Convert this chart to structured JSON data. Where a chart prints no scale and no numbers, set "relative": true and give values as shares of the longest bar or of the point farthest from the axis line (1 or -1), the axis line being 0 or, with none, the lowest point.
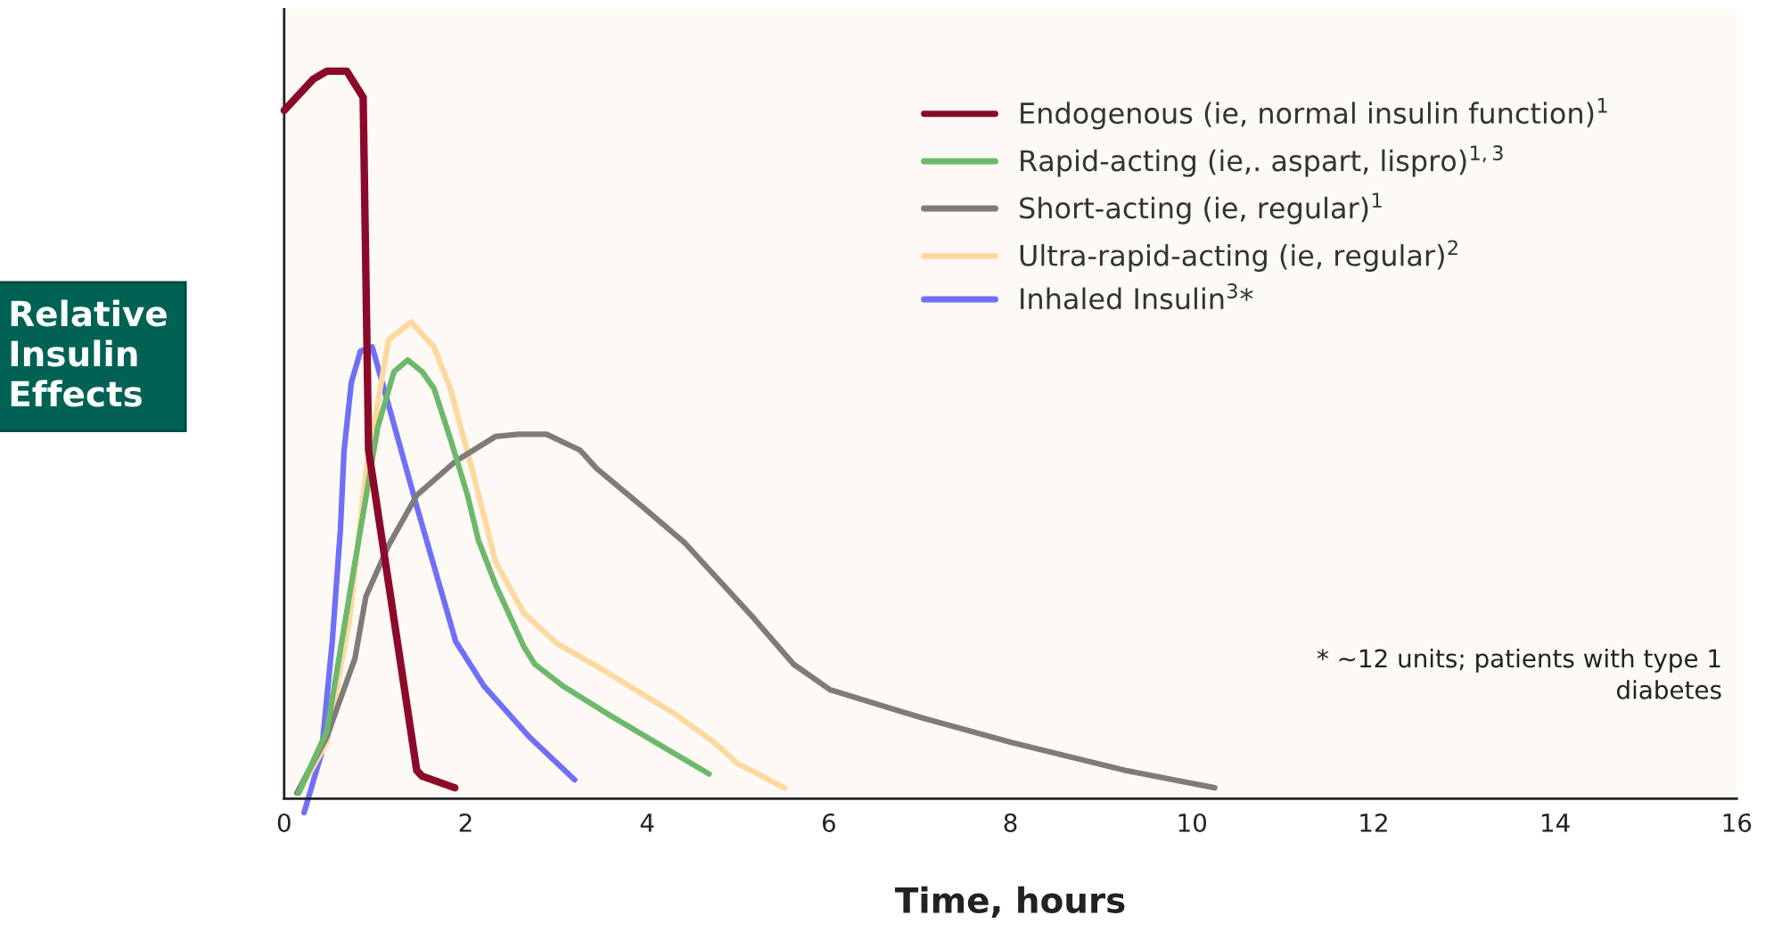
{
  "chart_data": {
    "type": "line",
    "relative": true,
    "xlabel": "Time, hours",
    "ylabel": "Relative\nInsulin\nEffects",
    "xlim": [
      0,
      16
    ],
    "xticks": [
      0,
      2,
      4,
      6,
      8,
      10,
      12,
      14,
      16
    ],
    "grid": false,
    "legend": "top right",
    "marker": "none",
    "line_style": "solid",
    "annotations": [
      "* ~12 units; patients with type 1\ndiabetes"
    ],
    "series": [
      {
        "name": "Endogenous (ie, normal insulin function)$^{1}$",
        "color": "#8b0a2a",
        "x": [
          0,
          0.32,
          0.47,
          0.69,
          0.87,
          0.93,
          1.46,
          1.52,
          1.88
        ],
        "values": [
          0.946,
          0.989,
          1,
          1,
          0.964,
          0.479,
          0.039,
          0.031,
          0.015
        ]
      },
      {
        "name": "Rapid-acting (ie,. aspart, lispro)$^{1,3}$",
        "color": "#6db86b",
        "x": [
          0.16,
          0.47,
          0.78,
          1.03,
          1.21,
          1.36,
          1.52,
          1.65,
          1.83,
          2.02,
          2.14,
          2.33,
          2.64,
          2.76,
          3.07,
          3.57,
          4.68
        ],
        "values": [
          0.008,
          0.093,
          0.325,
          0.51,
          0.587,
          0.603,
          0.587,
          0.564,
          0.495,
          0.417,
          0.355,
          0.294,
          0.209,
          0.185,
          0.155,
          0.116,
          0.034
        ]
      },
      {
        "name": "Short-acting (ie, regular)$^{1}$",
        "color": "#7f7b78",
        "x": [
          0.14,
          0.47,
          0.78,
          0.9,
          1.15,
          1.46,
          1.89,
          2.33,
          2.58,
          2.89,
          3.26,
          3.44,
          3.94,
          4.41,
          5.18,
          5.61,
          6.01,
          7.03,
          8.02,
          9.26,
          10.25
        ],
        "values": [
          0.008,
          0.085,
          0.193,
          0.278,
          0.348,
          0.417,
          0.464,
          0.498,
          0.501,
          0.501,
          0.479,
          0.454,
          0.402,
          0.352,
          0.247,
          0.185,
          0.15,
          0.111,
          0.077,
          0.039,
          0.015
        ]
      },
      {
        "name": "Ultra-rapid-acting (ie, regular)$^{2}$",
        "color": "#fdd9a0",
        "x": [
          0.16,
          0.47,
          0.72,
          0.9,
          1.15,
          1.4,
          1.65,
          1.83,
          2.08,
          2.33,
          2.64,
          3.01,
          3.5,
          4.31,
          4.74,
          4.99,
          5.51
        ],
        "values": [
          0.008,
          0.077,
          0.247,
          0.448,
          0.631,
          0.655,
          0.621,
          0.564,
          0.448,
          0.325,
          0.255,
          0.213,
          0.178,
          0.116,
          0.077,
          0.049,
          0.015
        ]
      },
      {
        "name": "Inhaled Insulin$^{3}$*",
        "color": "#6f6ff7",
        "x": [
          0.22,
          0.41,
          0.53,
          0.62,
          0.66,
          0.74,
          0.84,
          0.97,
          1.15,
          1.46,
          1.71,
          1.89,
          2.2,
          2.7,
          3.2
        ],
        "values": [
          -0.019,
          0.062,
          0.216,
          0.371,
          0.479,
          0.572,
          0.615,
          0.621,
          0.541,
          0.402,
          0.294,
          0.216,
          0.155,
          0.085,
          0.026
        ]
      }
    ]
  }
}
